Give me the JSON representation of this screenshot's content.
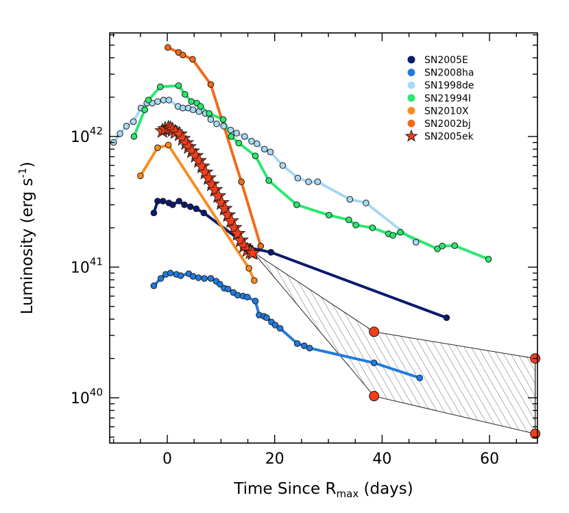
{
  "chart_data": {
    "type": "line",
    "xlabel": "Time Since R",
    "xlabel_sub": "max",
    "xlabel_suffix": " (days)",
    "ylabel": "Luminosity (erg s",
    "ylabel_sup": "-1",
    "ylabel_suffix": ")",
    "ylog": true,
    "xlim": [
      -11,
      69
    ],
    "ylim": [
      3e+39,
      6e+42
    ],
    "xticks": [
      0,
      20,
      40,
      60
    ],
    "xtick_labels": [
      "0",
      "20",
      "40",
      "60"
    ],
    "yticks": [
      1e+40,
      1e+41,
      1e+42
    ],
    "ytick_labels": [
      {
        "base": "10",
        "exp": "40"
      },
      {
        "base": "10",
        "exp": "41"
      },
      {
        "base": "10",
        "exp": "42"
      }
    ],
    "legend_position": "top-right",
    "series": [
      {
        "name": "SN2005E",
        "color": "#0b1a6e",
        "marker": "circle",
        "x": [
          -2.5,
          -1.8,
          -0.8,
          0.3,
          1.0,
          2.2,
          3.2,
          4.3,
          5.4,
          6.8,
          15.5,
          19.3,
          52.0
        ],
        "y": [
          2.6e+41,
          3.2e+41,
          3.2e+41,
          3.1e+41,
          3e+41,
          3.2e+41,
          3e+41,
          2.9e+41,
          2.8e+41,
          2.6e+41,
          1.4e+41,
          1.3e+41,
          4.1e+40
        ]
      },
      {
        "name": "SN2008ha",
        "color": "#1f7be0",
        "marker": "circle",
        "x": [
          -2.5,
          -1.2,
          -0.3,
          0.6,
          1.7,
          2.5,
          4.0,
          4.8,
          5.8,
          6.9,
          8.1,
          9.1,
          9.8,
          10.6,
          11.3,
          12.3,
          13.1,
          14.1,
          14.9,
          16.4,
          17.1,
          18.0,
          18.5,
          19.4,
          20.1,
          21.0,
          24.2,
          25.5,
          26.5,
          38.5,
          47.0
        ],
        "y": [
          7.2e+40,
          8.2e+40,
          8.8e+40,
          9e+40,
          8.8e+40,
          8.6e+40,
          8.9e+40,
          8.5e+40,
          8.3e+40,
          8.2e+40,
          8.2e+40,
          7.8e+40,
          7.4e+40,
          6.9e+40,
          6.8e+40,
          6.4e+40,
          6.1e+40,
          6e+40,
          5.9e+40,
          5.5e+40,
          4.3e+40,
          4.2e+40,
          4.1e+40,
          3.8e+40,
          3.6e+40,
          3.4e+40,
          2.6e+40,
          2.5e+40,
          2.4e+40,
          1.85e+40,
          1.42e+40
        ]
      },
      {
        "name": "SN1998de",
        "color": "#a8d8f3",
        "marker": "circle",
        "x": [
          -10.0,
          -8.8,
          -7.6,
          -6.3,
          -4.9,
          -3.8,
          -2.8,
          -1.8,
          -0.7,
          0.3,
          2.0,
          2.9,
          3.9,
          4.8,
          5.9,
          7.1,
          8.1,
          9.2,
          10.5,
          11.8,
          12.9,
          14.4,
          15.7,
          16.7,
          18.1,
          19.2,
          21.5,
          24.3,
          26.3,
          28.0,
          34.0,
          37.0,
          46.3
        ],
        "y": [
          9e+41,
          1.05e+42,
          1.2e+42,
          1.3e+42,
          1.65e+42,
          1.8e+42,
          1.8e+42,
          1.85e+42,
          1.9e+42,
          1.9e+42,
          1.7e+42,
          1.65e+42,
          1.65e+42,
          1.6e+42,
          1.55e+42,
          1.5e+42,
          1.35e+42,
          1.25e+42,
          1.2e+42,
          1.12e+42,
          1.06e+42,
          1e+42,
          9.2e+41,
          8.8e+41,
          8e+41,
          7.6e+41,
          6e+41,
          4.8e+41,
          4.5e+41,
          4.5e+41,
          3.3e+41,
          3.1e+41,
          1.55e+41
        ]
      },
      {
        "name": "SN21994I",
        "color": "#29e86e",
        "marker": "circle",
        "x": [
          -6.2,
          -4.2,
          -3.5,
          -1.3,
          2.1,
          3.3,
          4.5,
          5.5,
          6.2,
          7.8,
          10.4,
          11.9,
          13.3,
          16.4,
          18.9,
          24.1,
          30.1,
          33.8,
          35.1,
          38.2,
          41.2,
          42.0,
          43.4,
          50.3,
          51.2,
          53.5,
          59.8
        ],
        "y": [
          1e+42,
          1.6e+42,
          1.9e+42,
          2.4e+42,
          2.45e+42,
          2.1e+42,
          1.85e+42,
          1.8e+42,
          1.7e+42,
          1.5e+42,
          1.35e+42,
          1e+42,
          8.9e+41,
          7.1e+41,
          4.6e+41,
          3e+41,
          2.5e+41,
          2.3e+41,
          2.1e+41,
          2e+41,
          1.8e+41,
          1.75e+41,
          1.85e+41,
          1.38e+41,
          1.45e+41,
          1.46e+41,
          1.15e+41
        ]
      },
      {
        "name": "SN2010X",
        "color": "#fb8c1e",
        "marker": "circle",
        "x": [
          -5.0,
          -1.8,
          0.2,
          15.2,
          16.2
        ],
        "y": [
          5e+41,
          8.2e+41,
          8.6e+41,
          9.8e+40,
          7.9e+40
        ]
      },
      {
        "name": "SN2002bj",
        "color": "#f26a19",
        "marker": "circle",
        "x": [
          0.1,
          2.1,
          2.9,
          4.7,
          8.1,
          13.8,
          17.4
        ],
        "y": [
          4.8e+42,
          4.4e+42,
          4.2e+42,
          3.9e+42,
          2.5e+42,
          4.5e+41,
          1.45e+41
        ]
      },
      {
        "name": "SN2005ek",
        "color": "#f23d1a",
        "marker": "star",
        "x": [
          -0.9,
          -0.4,
          0.2,
          0.6,
          1.0,
          1.5,
          2.3,
          2.9,
          3.5,
          4.0,
          4.6,
          5.3,
          5.9,
          6.5,
          7.1,
          7.7,
          8.3,
          8.9,
          9.5,
          10.1,
          10.7,
          11.3,
          11.9,
          12.5,
          13.1,
          13.7,
          14.3,
          14.9,
          15.5,
          15.9
        ],
        "y": [
          1.1e+42,
          1.14e+42,
          1.16e+42,
          1.15e+42,
          1.12e+42,
          1.08e+42,
          1.04e+42,
          9.6e+41,
          8.9e+41,
          8.3e+41,
          7.7e+41,
          7.1e+41,
          6.5e+41,
          5.9e+41,
          5.3e+41,
          4.8e+41,
          4.3e+41,
          3.9e+41,
          3.5e+41,
          3.1e+41,
          2.8e+41,
          2.5e+41,
          2.25e+41,
          2e+41,
          1.8e+41,
          1.6e+41,
          1.45e+41,
          1.35e+41,
          1.3e+41,
          1.28e+41
        ]
      }
    ],
    "shaded_region": {
      "fill_pattern": "hatched",
      "upper": {
        "x": [
          16.0,
          38.5,
          68.5
        ],
        "y": [
          1.3e+41,
          3.2e+40,
          2e+40
        ]
      },
      "lower": {
        "x": [
          16.0,
          38.5,
          68.5
        ],
        "y": [
          1.3e+41,
          1.03e+40,
          5.3e+39
        ]
      },
      "marker_color": "#f23d1a"
    }
  }
}
